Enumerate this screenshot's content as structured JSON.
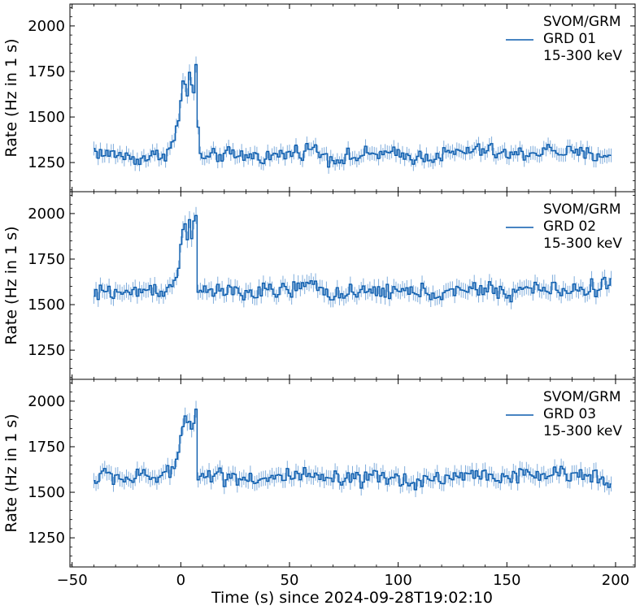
{
  "chart_data": {
    "type": "line",
    "shared_x": {
      "label": "Time (s) since 2024-09-28T19:02:10",
      "range": [
        -51,
        209
      ],
      "ticks": [
        -50,
        0,
        50,
        100,
        150,
        200
      ],
      "tick_labels": [
        "−50",
        "0",
        "50",
        "100",
        "150",
        "200"
      ]
    },
    "y_range": [
      1090,
      2120
    ],
    "y_ticks": [
      1250,
      1500,
      1750,
      2000
    ],
    "y_tick_labels": [
      "1250",
      "1500",
      "1750",
      "2000"
    ],
    "ylabel": "Rate (Hz in 1 s)",
    "style": {
      "line_color": "#0b5cad",
      "error_color": "#6a9fd6",
      "drawstyle": "steps-mid",
      "error_bars": true,
      "bin_width_s": 1,
      "legend_position": "top-right"
    },
    "panels": [
      {
        "legend_lines": [
          "SVOM/GRM",
          "GRD 01",
          "15-300 keV"
        ],
        "key_points": [
          [
            -40,
            1320
          ],
          [
            -35,
            1290
          ],
          [
            -30,
            1300
          ],
          [
            -25,
            1280
          ],
          [
            -20,
            1270
          ],
          [
            -15,
            1280
          ],
          [
            -10,
            1290
          ],
          [
            -5,
            1320
          ],
          [
            -3,
            1380
          ],
          [
            -1,
            1480
          ],
          [
            0,
            1580
          ],
          [
            1,
            1680
          ],
          [
            2,
            1700
          ],
          [
            3,
            1620
          ],
          [
            4,
            1760
          ],
          [
            5,
            1640
          ],
          [
            6,
            1620
          ],
          [
            7,
            1780
          ],
          [
            8,
            1450
          ],
          [
            9,
            1320
          ],
          [
            10,
            1260
          ],
          [
            15,
            1280
          ],
          [
            20,
            1300
          ],
          [
            25,
            1280
          ],
          [
            30,
            1290
          ],
          [
            40,
            1280
          ],
          [
            50,
            1300
          ],
          [
            60,
            1330
          ],
          [
            70,
            1270
          ],
          [
            80,
            1280
          ],
          [
            90,
            1300
          ],
          [
            100,
            1290
          ],
          [
            110,
            1280
          ],
          [
            120,
            1290
          ],
          [
            130,
            1310
          ],
          [
            140,
            1320
          ],
          [
            150,
            1290
          ],
          [
            160,
            1300
          ],
          [
            170,
            1320
          ],
          [
            180,
            1300
          ],
          [
            190,
            1290
          ],
          [
            198,
            1300
          ]
        ],
        "noise_amplitude": 35
      },
      {
        "legend_lines": [
          "SVOM/GRM",
          "GRD 02",
          "15-300 keV"
        ],
        "key_points": [
          [
            -40,
            1540
          ],
          [
            -35,
            1580
          ],
          [
            -30,
            1570
          ],
          [
            -25,
            1560
          ],
          [
            -20,
            1570
          ],
          [
            -15,
            1590
          ],
          [
            -10,
            1580
          ],
          [
            -5,
            1590
          ],
          [
            -3,
            1620
          ],
          [
            -1,
            1700
          ],
          [
            0,
            1820
          ],
          [
            1,
            1900
          ],
          [
            2,
            1970
          ],
          [
            3,
            1880
          ],
          [
            4,
            1990
          ],
          [
            5,
            1900
          ],
          [
            6,
            1940
          ],
          [
            7,
            2010
          ],
          [
            8,
            1600
          ],
          [
            9,
            1530
          ],
          [
            10,
            1560
          ],
          [
            20,
            1580
          ],
          [
            30,
            1560
          ],
          [
            40,
            1570
          ],
          [
            50,
            1580
          ],
          [
            60,
            1610
          ],
          [
            70,
            1560
          ],
          [
            80,
            1550
          ],
          [
            90,
            1580
          ],
          [
            100,
            1570
          ],
          [
            110,
            1570
          ],
          [
            120,
            1560
          ],
          [
            130,
            1570
          ],
          [
            140,
            1590
          ],
          [
            150,
            1560
          ],
          [
            160,
            1590
          ],
          [
            170,
            1580
          ],
          [
            180,
            1580
          ],
          [
            190,
            1590
          ],
          [
            198,
            1620
          ]
        ],
        "noise_amplitude": 38
      },
      {
        "legend_lines": [
          "SVOM/GRM",
          "GRD 03",
          "15-300 keV"
        ],
        "key_points": [
          [
            -40,
            1560
          ],
          [
            -35,
            1600
          ],
          [
            -30,
            1590
          ],
          [
            -25,
            1570
          ],
          [
            -20,
            1580
          ],
          [
            -15,
            1590
          ],
          [
            -10,
            1580
          ],
          [
            -5,
            1600
          ],
          [
            -3,
            1640
          ],
          [
            -1,
            1720
          ],
          [
            0,
            1800
          ],
          [
            1,
            1900
          ],
          [
            2,
            1950
          ],
          [
            3,
            1880
          ],
          [
            4,
            1920
          ],
          [
            5,
            1870
          ],
          [
            6,
            1900
          ],
          [
            7,
            1960
          ],
          [
            8,
            1580
          ],
          [
            9,
            1560
          ],
          [
            10,
            1600
          ],
          [
            20,
            1590
          ],
          [
            30,
            1580
          ],
          [
            40,
            1570
          ],
          [
            50,
            1590
          ],
          [
            60,
            1580
          ],
          [
            70,
            1570
          ],
          [
            80,
            1560
          ],
          [
            90,
            1580
          ],
          [
            100,
            1570
          ],
          [
            110,
            1560
          ],
          [
            120,
            1580
          ],
          [
            130,
            1590
          ],
          [
            140,
            1600
          ],
          [
            150,
            1580
          ],
          [
            160,
            1590
          ],
          [
            170,
            1600
          ],
          [
            180,
            1590
          ],
          [
            190,
            1600
          ],
          [
            198,
            1580
          ]
        ],
        "noise_amplitude": 38
      }
    ]
  }
}
